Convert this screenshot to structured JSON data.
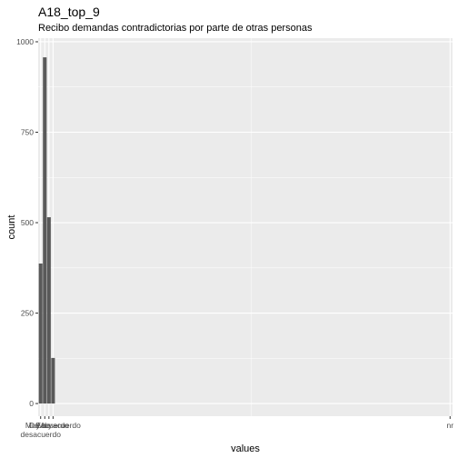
{
  "chart_data": {
    "type": "bar",
    "title": "A18_top_9",
    "subtitle": "Recibo demandas contradictorias por parte de otras personas",
    "xlabel": "values",
    "ylabel": "count",
    "ylim": [
      -35,
      1010
    ],
    "yticks": [
      0,
      250,
      500,
      750,
      1000
    ],
    "xlim": [
      0.4,
      100.6
    ],
    "grid": true,
    "bars": [
      {
        "x": 1,
        "value": 387
      },
      {
        "x": 2,
        "value": 957
      },
      {
        "x": 3,
        "value": 515
      },
      {
        "x": 4,
        "value": 126
      }
    ],
    "x_tick_positions": [
      1,
      2,
      3,
      4,
      100
    ],
    "x_tick_labels": [
      [
        "En",
        "desacuerdo"
      ],
      [
        "Muy"
      ],
      [
        "De acuerdo"
      ],
      [
        "Muy de acuerdo"
      ],
      [
        "nr"
      ]
    ],
    "colors": {
      "panel": "#ebebeb",
      "grid_major": "#ffffff",
      "bar": "#595959",
      "tick_label": "#4d4d4d",
      "tick": "#333333"
    }
  }
}
